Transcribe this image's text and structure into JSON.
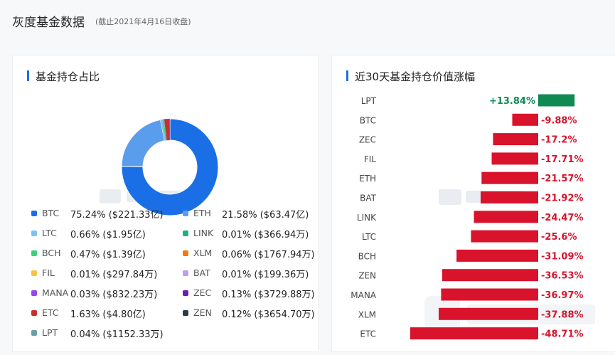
{
  "page": {
    "title": "灰度基金数据",
    "subtitle": "(截止2021年4月16日收盘)"
  },
  "colors": {
    "accent": "#1a6fe6",
    "positive": "#108a53",
    "negative": "#d9132b"
  },
  "holdings_card": {
    "title": "基金持仓占比"
  },
  "change_card": {
    "title": "近30天基金持仓价值涨幅"
  },
  "chart_data": [
    {
      "type": "pie",
      "title": "基金持仓占比",
      "donut": true,
      "slices": [
        {
          "name": "BTC",
          "percent": 75.24,
          "value_text": "75.24% ($221.33亿)",
          "color": "#1a6fe6"
        },
        {
          "name": "ETH",
          "percent": 21.58,
          "value_text": "21.58% ($63.47亿)",
          "color": "#5b9ded"
        },
        {
          "name": "LTC",
          "percent": 0.66,
          "value_text": "0.66% ($1.95亿)",
          "color": "#7cc2f2"
        },
        {
          "name": "LINK",
          "percent": 0.01,
          "value_text": "0.01% ($366.94万)",
          "color": "#19b37d"
        },
        {
          "name": "BCH",
          "percent": 0.47,
          "value_text": "0.47% ($1.39亿)",
          "color": "#3bd17a"
        },
        {
          "name": "XLM",
          "percent": 0.06,
          "value_text": "0.06% ($1767.94万)",
          "color": "#f07a10"
        },
        {
          "name": "FIL",
          "percent": 0.01,
          "value_text": "0.01% ($297.84万)",
          "color": "#f5c542"
        },
        {
          "name": "BAT",
          "percent": 0.01,
          "value_text": "0.01% ($199.36万)",
          "color": "#c39af5"
        },
        {
          "name": "MANA",
          "percent": 0.03,
          "value_text": "0.03% ($832.23万)",
          "color": "#9747e6"
        },
        {
          "name": "ZEC",
          "percent": 0.13,
          "value_text": "0.13% ($3729.88万)",
          "color": "#6b1fb0"
        },
        {
          "name": "ETC",
          "percent": 1.63,
          "value_text": "1.63% ($4.80亿)",
          "color": "#c8302f"
        },
        {
          "name": "ZEN",
          "percent": 0.12,
          "value_text": "0.12% ($3654.70万)",
          "color": "#2e3a44"
        },
        {
          "name": "LPT",
          "percent": 0.04,
          "value_text": "0.04% ($1152.33万)",
          "color": "#6b9ea8"
        }
      ]
    },
    {
      "type": "bar",
      "orientation": "horizontal",
      "title": "近30天基金持仓价值涨幅",
      "unit": "%",
      "categories": [
        "LPT",
        "BTC",
        "ZEC",
        "FIL",
        "ETH",
        "BAT",
        "LINK",
        "LTC",
        "BCH",
        "ZEN",
        "MANA",
        "XLM",
        "ETC"
      ],
      "values": [
        13.84,
        -9.88,
        -17.2,
        -17.71,
        -21.57,
        -21.92,
        -24.47,
        -25.6,
        -31.09,
        -36.53,
        -36.97,
        -37.88,
        -48.71
      ],
      "labels": [
        "+13.84%",
        "-9.88%",
        "-17.2%",
        "-17.71%",
        "-21.57%",
        "-21.92%",
        "-24.47%",
        "-25.6%",
        "-31.09%",
        "-36.53%",
        "-36.97%",
        "-37.88%",
        "-48.71%"
      ]
    }
  ]
}
